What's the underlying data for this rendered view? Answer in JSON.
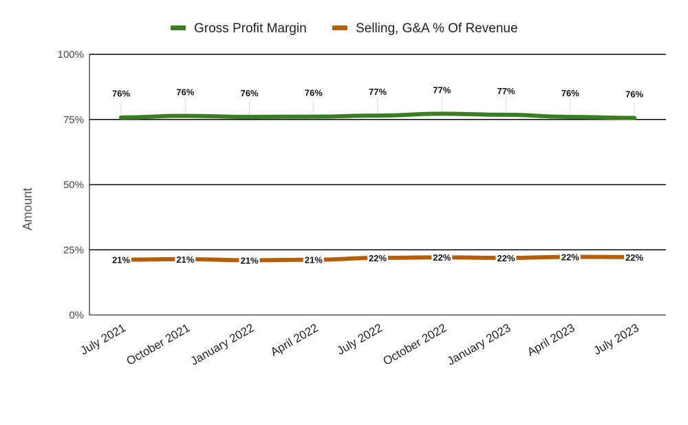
{
  "chart_data": {
    "type": "line",
    "title": "",
    "ylabel": "Amount",
    "xlabel": "",
    "ylim": [
      0,
      100
    ],
    "yticks": [
      0,
      25,
      50,
      75,
      100
    ],
    "ytick_labels": [
      "0%",
      "25%",
      "50%",
      "75%",
      "100%"
    ],
    "categories": [
      "July 2021",
      "October 2021",
      "January 2022",
      "April 2022",
      "July 2022",
      "October 2022",
      "January 2023",
      "April 2023",
      "July 2023"
    ],
    "legend_position": "top",
    "grid": "horizontal",
    "series": [
      {
        "name": "Gross Profit Margin",
        "color": "#3a7d23",
        "values": [
          75.8,
          76.4,
          76.0,
          76.1,
          76.5,
          77.2,
          76.8,
          76.0,
          75.6
        ],
        "labels": [
          "76%",
          "76%",
          "76%",
          "76%",
          "77%",
          "77%",
          "77%",
          "76%",
          "76%"
        ]
      },
      {
        "name": "Selling, G&A % Of Revenue",
        "color": "#b45f06",
        "values": [
          21.2,
          21.4,
          21.0,
          21.2,
          21.9,
          22.1,
          21.9,
          22.3,
          22.2
        ],
        "labels": [
          "21%",
          "21%",
          "21%",
          "21%",
          "22%",
          "22%",
          "22%",
          "22%",
          "22%"
        ]
      }
    ]
  }
}
